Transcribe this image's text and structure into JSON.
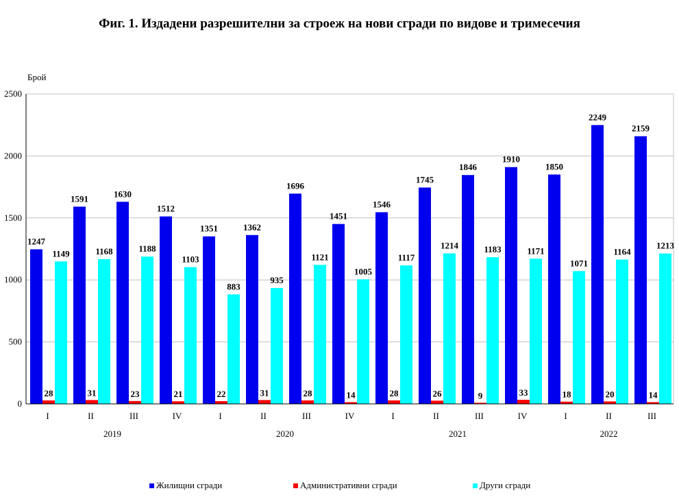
{
  "title": "Фиг. 1. Издадени разрешителни за строеж на нови сгради по видове и тримесечия",
  "chart_data": {
    "type": "bar",
    "title": "Фиг. 1. Издадени разрешителни за строеж на нови сгради по видове и тримесечия",
    "ylabel": "Брой",
    "ylim": [
      0,
      2500
    ],
    "yticks": [
      0,
      500,
      1000,
      1500,
      2000,
      2500
    ],
    "grid": true,
    "legend_position": "bottom",
    "categories": [
      "I",
      "II",
      "III",
      "IV",
      "I",
      "II",
      "III",
      "IV",
      "I",
      "II",
      "III",
      "IV",
      "I",
      "II",
      "III"
    ],
    "years": [
      {
        "label": "2019",
        "quarters": 4
      },
      {
        "label": "2020",
        "quarters": 4
      },
      {
        "label": "2021",
        "quarters": 4
      },
      {
        "label": "2022",
        "quarters": 3
      }
    ],
    "series": [
      {
        "name": "Жилищни сгради",
        "color": "#0000ee",
        "values": [
          1247,
          1591,
          1630,
          1512,
          1351,
          1362,
          1696,
          1451,
          1546,
          1745,
          1846,
          1910,
          1850,
          2249,
          2159
        ]
      },
      {
        "name": "Административни сгради",
        "color": "#ff0000",
        "values": [
          28,
          31,
          23,
          21,
          22,
          31,
          28,
          14,
          28,
          26,
          9,
          33,
          18,
          20,
          14
        ]
      },
      {
        "name": "Други сгради",
        "color": "#00ffff",
        "values": [
          1149,
          1168,
          1188,
          1103,
          883,
          935,
          1121,
          1005,
          1117,
          1214,
          1183,
          1171,
          1071,
          1164,
          1213
        ]
      }
    ]
  }
}
